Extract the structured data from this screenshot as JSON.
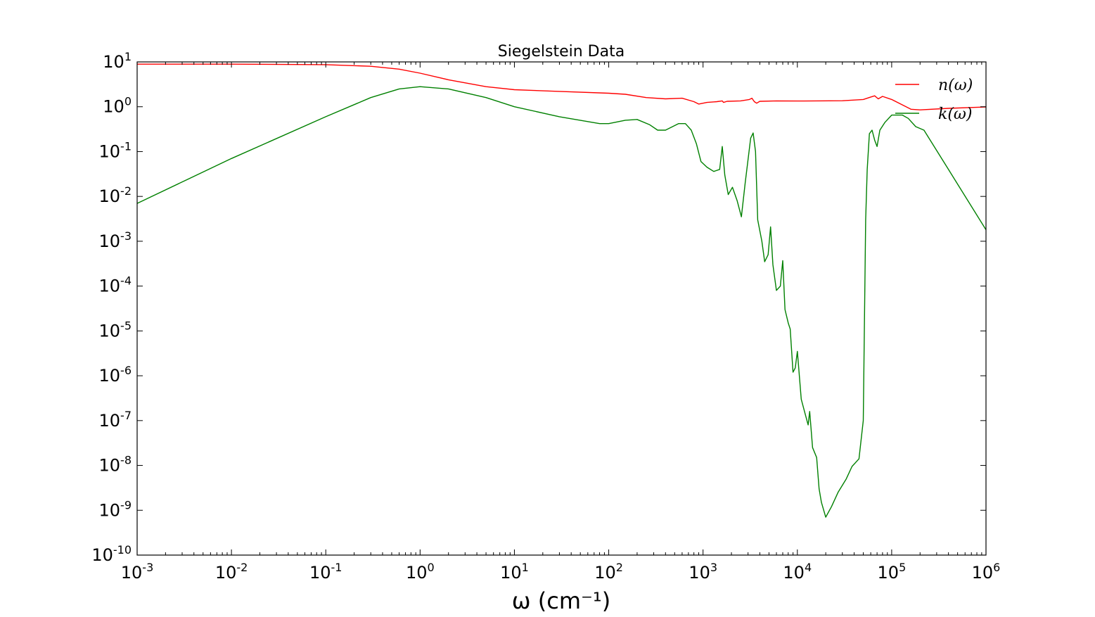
{
  "chart_data": {
    "type": "line",
    "title": "Siegelstein Data",
    "xlabel": "ω (cm⁻¹)",
    "ylabel": "",
    "xscale": "log",
    "yscale": "log",
    "xlim": [
      0.001,
      1000000
    ],
    "ylim": [
      1e-10,
      10
    ],
    "x_ticks": [
      {
        "value": 0.001,
        "base": "10",
        "exp": "-3"
      },
      {
        "value": 0.01,
        "base": "10",
        "exp": "-2"
      },
      {
        "value": 0.1,
        "base": "10",
        "exp": "-1"
      },
      {
        "value": 1,
        "base": "10",
        "exp": "0"
      },
      {
        "value": 10,
        "base": "10",
        "exp": "1"
      },
      {
        "value": 100,
        "base": "10",
        "exp": "2"
      },
      {
        "value": 1000,
        "base": "10",
        "exp": "3"
      },
      {
        "value": 10000,
        "base": "10",
        "exp": "4"
      },
      {
        "value": 100000,
        "base": "10",
        "exp": "5"
      },
      {
        "value": 1000000,
        "base": "10",
        "exp": "6"
      }
    ],
    "y_ticks": [
      {
        "value": 10,
        "base": "10",
        "exp": "1"
      },
      {
        "value": 1,
        "base": "10",
        "exp": "0"
      },
      {
        "value": 0.1,
        "base": "10",
        "exp": "-1"
      },
      {
        "value": 0.01,
        "base": "10",
        "exp": "-2"
      },
      {
        "value": 0.001,
        "base": "10",
        "exp": "-3"
      },
      {
        "value": 0.0001,
        "base": "10",
        "exp": "-4"
      },
      {
        "value": 1e-05,
        "base": "10",
        "exp": "-5"
      },
      {
        "value": 1e-06,
        "base": "10",
        "exp": "-6"
      },
      {
        "value": 1e-07,
        "base": "10",
        "exp": "-7"
      },
      {
        "value": 1e-08,
        "base": "10",
        "exp": "-8"
      },
      {
        "value": 1e-09,
        "base": "10",
        "exp": "-9"
      },
      {
        "value": 1e-10,
        "base": "10",
        "exp": "-10"
      }
    ],
    "grid": false,
    "legend_position": "top-right",
    "series": [
      {
        "name": "n(ω)",
        "color": "#ff0000",
        "points": [
          [
            0.001,
            8.9
          ],
          [
            0.01,
            8.9
          ],
          [
            0.1,
            8.7
          ],
          [
            0.3,
            8.0
          ],
          [
            0.6,
            6.9
          ],
          [
            1,
            5.6
          ],
          [
            2,
            4.0
          ],
          [
            5,
            2.8
          ],
          [
            10,
            2.4
          ],
          [
            30,
            2.2
          ],
          [
            100,
            2.0
          ],
          [
            150,
            1.9
          ],
          [
            250,
            1.6
          ],
          [
            400,
            1.5
          ],
          [
            600,
            1.55
          ],
          [
            800,
            1.3
          ],
          [
            900,
            1.15
          ],
          [
            1100,
            1.25
          ],
          [
            1400,
            1.3
          ],
          [
            1600,
            1.35
          ],
          [
            1650,
            1.25
          ],
          [
            1800,
            1.32
          ],
          [
            2500,
            1.35
          ],
          [
            3100,
            1.45
          ],
          [
            3300,
            1.55
          ],
          [
            3500,
            1.3
          ],
          [
            3700,
            1.2
          ],
          [
            4000,
            1.32
          ],
          [
            6000,
            1.35
          ],
          [
            10000,
            1.34
          ],
          [
            30000,
            1.36
          ],
          [
            50000,
            1.45
          ],
          [
            60000,
            1.65
          ],
          [
            66000,
            1.75
          ],
          [
            72000,
            1.5
          ],
          [
            80000,
            1.7
          ],
          [
            100000,
            1.45
          ],
          [
            130000,
            1.1
          ],
          [
            160000,
            0.88
          ],
          [
            200000,
            0.85
          ],
          [
            400000,
            0.92
          ],
          [
            1000000,
            0.99
          ]
        ]
      },
      {
        "name": "k(ω)",
        "color": "#008000",
        "points": [
          [
            0.001,
            0.007
          ],
          [
            0.01,
            0.07
          ],
          [
            0.1,
            0.6
          ],
          [
            0.3,
            1.6
          ],
          [
            0.6,
            2.5
          ],
          [
            1,
            2.8
          ],
          [
            2,
            2.5
          ],
          [
            5,
            1.6
          ],
          [
            10,
            1.0
          ],
          [
            30,
            0.6
          ],
          [
            80,
            0.42
          ],
          [
            100,
            0.42
          ],
          [
            150,
            0.5
          ],
          [
            200,
            0.52
          ],
          [
            270,
            0.4
          ],
          [
            330,
            0.3
          ],
          [
            400,
            0.3
          ],
          [
            550,
            0.42
          ],
          [
            650,
            0.42
          ],
          [
            750,
            0.3
          ],
          [
            850,
            0.15
          ],
          [
            950,
            0.06
          ],
          [
            1100,
            0.045
          ],
          [
            1300,
            0.036
          ],
          [
            1500,
            0.04
          ],
          [
            1600,
            0.13
          ],
          [
            1700,
            0.03
          ],
          [
            1850,
            0.011
          ],
          [
            2050,
            0.016
          ],
          [
            2300,
            0.008
          ],
          [
            2550,
            0.0035
          ],
          [
            2800,
            0.02
          ],
          [
            3200,
            0.2
          ],
          [
            3400,
            0.26
          ],
          [
            3600,
            0.1
          ],
          [
            3800,
            0.003
          ],
          [
            4200,
            0.001
          ],
          [
            4500,
            0.00035
          ],
          [
            4900,
            0.0005
          ],
          [
            5200,
            0.0021
          ],
          [
            5500,
            0.0003
          ],
          [
            6000,
            8e-05
          ],
          [
            6600,
            0.0001
          ],
          [
            7000,
            0.00037
          ],
          [
            7400,
            3e-05
          ],
          [
            8000,
            1.5e-05
          ],
          [
            8400,
            1.1e-05
          ],
          [
            9000,
            1.2e-06
          ],
          [
            9500,
            1.5e-06
          ],
          [
            10000,
            3.5e-06
          ],
          [
            11000,
            3e-07
          ],
          [
            12000,
            1.5e-07
          ],
          [
            13000,
            8e-08
          ],
          [
            13500,
            1.6e-07
          ],
          [
            14500,
            2.5e-08
          ],
          [
            16000,
            1.5e-08
          ],
          [
            17000,
            3e-09
          ],
          [
            18000,
            1.5e-09
          ],
          [
            20000,
            7e-10
          ],
          [
            23000,
            1.2e-09
          ],
          [
            27000,
            2.5e-09
          ],
          [
            33000,
            5e-09
          ],
          [
            38000,
            9.5e-09
          ],
          [
            45000,
            1.4e-08
          ],
          [
            50000,
            1e-07
          ],
          [
            53000,
            0.003
          ],
          [
            55000,
            0.04
          ],
          [
            58000,
            0.25
          ],
          [
            62000,
            0.3
          ],
          [
            66000,
            0.18
          ],
          [
            70000,
            0.13
          ],
          [
            75000,
            0.3
          ],
          [
            85000,
            0.45
          ],
          [
            100000,
            0.65
          ],
          [
            130000,
            0.65
          ],
          [
            150000,
            0.55
          ],
          [
            180000,
            0.36
          ],
          [
            220000,
            0.3
          ],
          [
            400000,
            0.04
          ],
          [
            1000000,
            0.0018
          ]
        ]
      }
    ]
  }
}
